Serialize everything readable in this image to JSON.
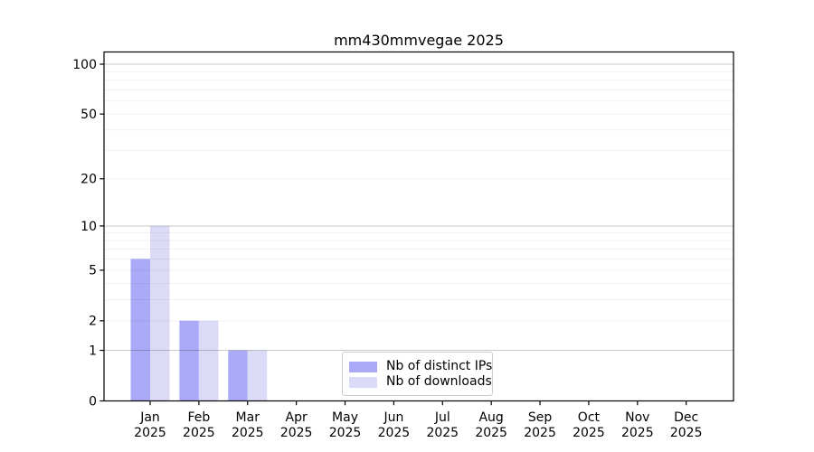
{
  "chart_data": {
    "type": "bar",
    "title": "mm430mmvegae 2025",
    "categories": [
      "Jan",
      "Feb",
      "Mar",
      "Apr",
      "May",
      "Jun",
      "Jul",
      "Aug",
      "Sep",
      "Oct",
      "Nov",
      "Dec"
    ],
    "x_tick_year": "2025",
    "series": [
      {
        "name": "Nb of distinct IPs",
        "color": "#aaaaf8",
        "values": [
          6,
          2,
          1,
          0,
          0,
          0,
          0,
          0,
          0,
          0,
          0,
          0
        ]
      },
      {
        "name": "Nb of downloads",
        "color": "#dbdbf8",
        "values": [
          10,
          2,
          1,
          0,
          0,
          0,
          0,
          0,
          0,
          0,
          0,
          0
        ]
      }
    ],
    "xlabel": "",
    "ylabel": "",
    "y_ticks": [
      0,
      1,
      2,
      5,
      10,
      20,
      50,
      100
    ],
    "y_major_gridlines": [
      1,
      10,
      100
    ],
    "y_minor_gridlines": [
      2,
      3,
      4,
      5,
      6,
      7,
      8,
      9,
      20,
      30,
      40,
      50,
      60,
      70,
      80,
      90
    ],
    "scale": "log1p",
    "ylim": [
      0,
      118
    ],
    "grid": true,
    "legend_position": "lower-center",
    "colors": {
      "spine": "#000000",
      "major_grid": "#c9c9c9",
      "minor_grid": "#f0f0f0",
      "background": "#ffffff"
    }
  }
}
